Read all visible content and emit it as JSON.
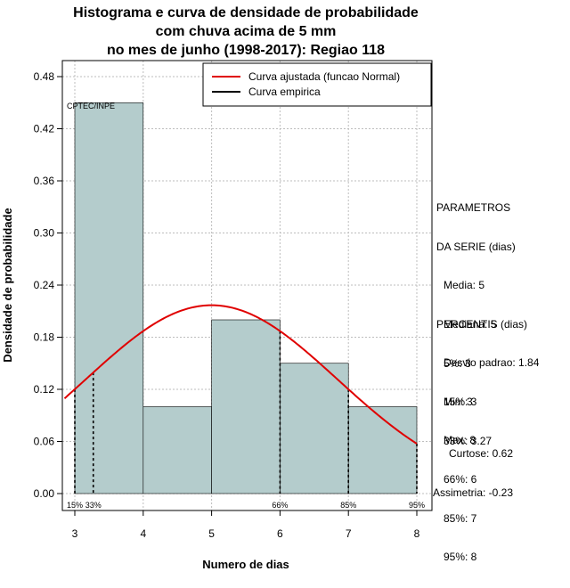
{
  "chart_data": {
    "type": "bar",
    "title_lines": [
      "Histograma e curva de densidade de probabilidade",
      "com chuva acima de 5 mm",
      "no mes de junho (1998-2017): Regiao 118"
    ],
    "xlabel": "Numero de dias",
    "ylabel": "Densidade de probabilidade",
    "xlim": [
      2.85,
      8.15
    ],
    "ylim": [
      0,
      0.5
    ],
    "x_ticks": [
      3,
      4,
      5,
      6,
      7,
      8
    ],
    "y_ticks": [
      0.0,
      0.06,
      0.12,
      0.18,
      0.24,
      0.3,
      0.36,
      0.42,
      0.48
    ],
    "y_tick_labels": [
      "0.00",
      "0.06",
      "0.12",
      "0.18",
      "0.24",
      "0.30",
      "0.36",
      "0.42",
      "0.48"
    ],
    "bins": [
      {
        "from": 3,
        "to": 4,
        "density": 0.45
      },
      {
        "from": 4,
        "to": 5,
        "density": 0.1
      },
      {
        "from": 5,
        "to": 6,
        "density": 0.2
      },
      {
        "from": 6,
        "to": 7,
        "density": 0.15
      },
      {
        "from": 7,
        "to": 8,
        "density": 0.1
      }
    ],
    "normal_curve": {
      "mean": 5.0,
      "sd": 1.84,
      "from": 2.85,
      "to": 8.0
    },
    "percentile_lines": [
      {
        "x": 3.0,
        "label": "15%"
      },
      {
        "x": 3.27,
        "label": "33%"
      },
      {
        "x": 6.0,
        "label": "66%"
      },
      {
        "x": 7.0,
        "label": "85%"
      },
      {
        "x": 8.0,
        "label": "95%"
      }
    ],
    "legend": [
      {
        "label": "Curva ajustada (funcao Normal)",
        "color": "#e00000"
      },
      {
        "label": "Curva empirica",
        "color": "#000000"
      }
    ],
    "watermark": "CPTEC/INPE",
    "colors": {
      "bar_fill": "#b4cccc",
      "curve": "#e00000",
      "grid": "#bdbdbd"
    }
  },
  "stats": {
    "params_header": [
      "PARAMETROS",
      "DA SERIE (dias)"
    ],
    "params": [
      "Media: 5",
      "Mediana: 5",
      "Desvio padrao: 1.84",
      "Min: 3",
      "Max: 8"
    ],
    "pct_header": "PERCENTIS (dias)",
    "percentis": [
      "5%: 3",
      "15%: 3",
      "33%: 3.27",
      "66%: 6",
      "85%: 7",
      "95%: 8"
    ],
    "curtose": "Curtose: 0.62",
    "assimetria": "Assimetria: -0.23"
  }
}
